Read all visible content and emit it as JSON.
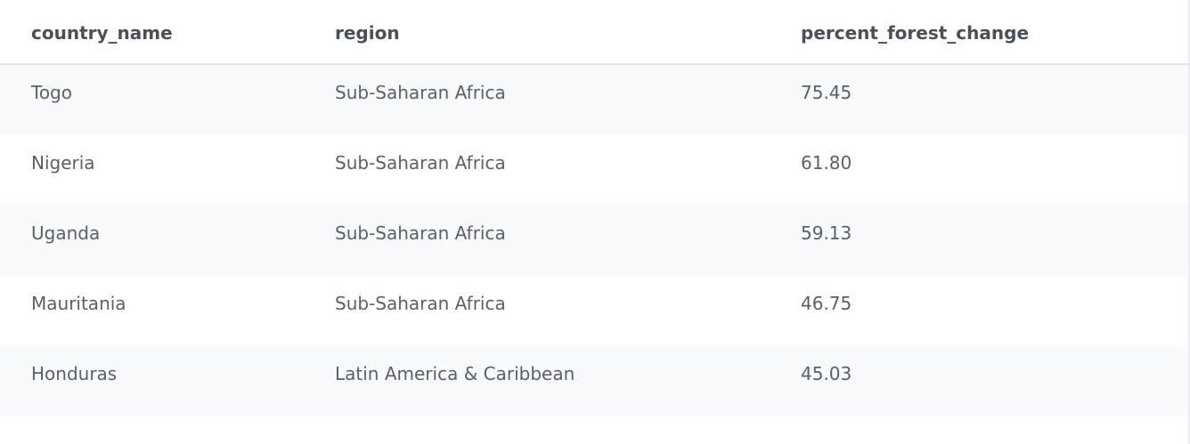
{
  "table": {
    "columns": [
      {
        "label": "country_name"
      },
      {
        "label": "region"
      },
      {
        "label": "percent_forest_change"
      }
    ],
    "rows": [
      {
        "country_name": "Togo",
        "region": "Sub-Saharan Africa",
        "percent_forest_change": "75.45"
      },
      {
        "country_name": "Nigeria",
        "region": "Sub-Saharan Africa",
        "percent_forest_change": "61.80"
      },
      {
        "country_name": "Uganda",
        "region": "Sub-Saharan Africa",
        "percent_forest_change": "59.13"
      },
      {
        "country_name": "Mauritania",
        "region": "Sub-Saharan Africa",
        "percent_forest_change": "46.75"
      },
      {
        "country_name": "Honduras",
        "region": "Latin America & Caribbean",
        "percent_forest_change": "45.03"
      }
    ]
  },
  "colors": {
    "header_text": "#4a5056",
    "cell_text": "#5b6166",
    "stripe": "#f8f9fb",
    "divider": "#dfe4ea"
  }
}
